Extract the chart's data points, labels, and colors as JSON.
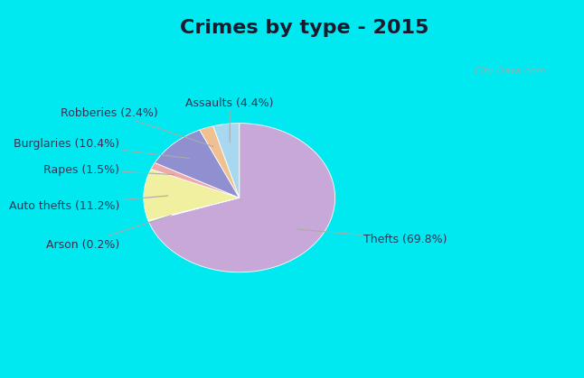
{
  "title": "Crimes by type - 2015",
  "labels": [
    "Thefts",
    "Arson",
    "Auto thefts",
    "Rapes",
    "Burglaries",
    "Robberies",
    "Assaults"
  ],
  "values": [
    69.8,
    0.2,
    11.2,
    1.5,
    10.4,
    2.4,
    4.4
  ],
  "colors": [
    "#c8a8d8",
    "#d0e8c0",
    "#f0f0a0",
    "#f0a8a8",
    "#9090d0",
    "#f0c090",
    "#a8d8f0"
  ],
  "label_texts": [
    "Thefts (69.8%)",
    "Arson (0.2%)",
    "Auto thefts (11.2%)",
    "Rapes (1.5%)",
    "Burglaries (10.4%)",
    "Robberies (2.4%)",
    "Assaults (4.4%)"
  ],
  "bg_color_top": "#00e8f0",
  "bg_color_main_top": "#d8ece0",
  "bg_color_main_bot": "#c8e8d8",
  "title_fontsize": 16,
  "label_fontsize": 9,
  "startangle": 90,
  "watermark": "City-Data.com"
}
